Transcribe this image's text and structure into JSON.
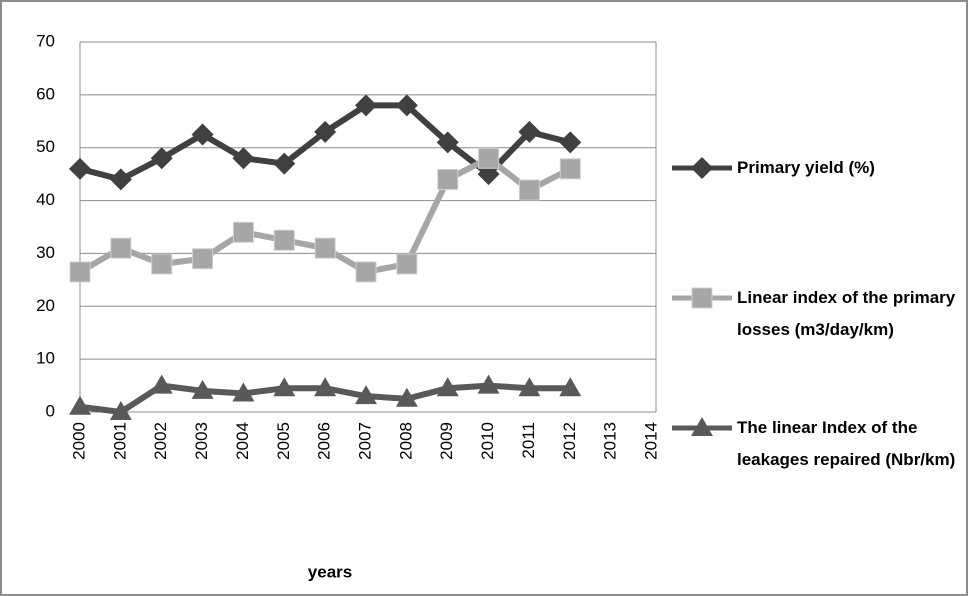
{
  "chart_data": {
    "type": "line",
    "x_label": "years",
    "categories": [
      "2000",
      "2001",
      "2002",
      "2003",
      "2004",
      "2005",
      "2006",
      "2007",
      "2008",
      "2009",
      "2010",
      "2011",
      "2012",
      "2013",
      "2014"
    ],
    "series": [
      {
        "name": "Primary yield (%)",
        "color": "#404040",
        "marker": "diamond",
        "values": [
          46,
          44,
          48,
          52.5,
          48,
          47,
          53,
          58,
          58,
          51,
          45,
          53,
          51,
          null,
          null
        ]
      },
      {
        "name": "Linear index of the primary losses (m3/day/km)",
        "color": "#a6a6a6",
        "marker": "square",
        "values": [
          26.5,
          31,
          28,
          29,
          34,
          32.5,
          31,
          26.5,
          28,
          44,
          48,
          42,
          46,
          null,
          null
        ]
      },
      {
        "name": "The linear Index of the leakages repaired (Nbr/km)",
        "color": "#595959",
        "marker": "triangle",
        "values": [
          1,
          0,
          5,
          4,
          3.5,
          4.5,
          4.5,
          3,
          2.5,
          4.5,
          5,
          4.5,
          4.5,
          null,
          null
        ]
      }
    ],
    "ylim": [
      0,
      70
    ],
    "yticks": [
      0,
      10,
      20,
      30,
      40,
      50,
      60,
      70
    ],
    "grid": true
  }
}
